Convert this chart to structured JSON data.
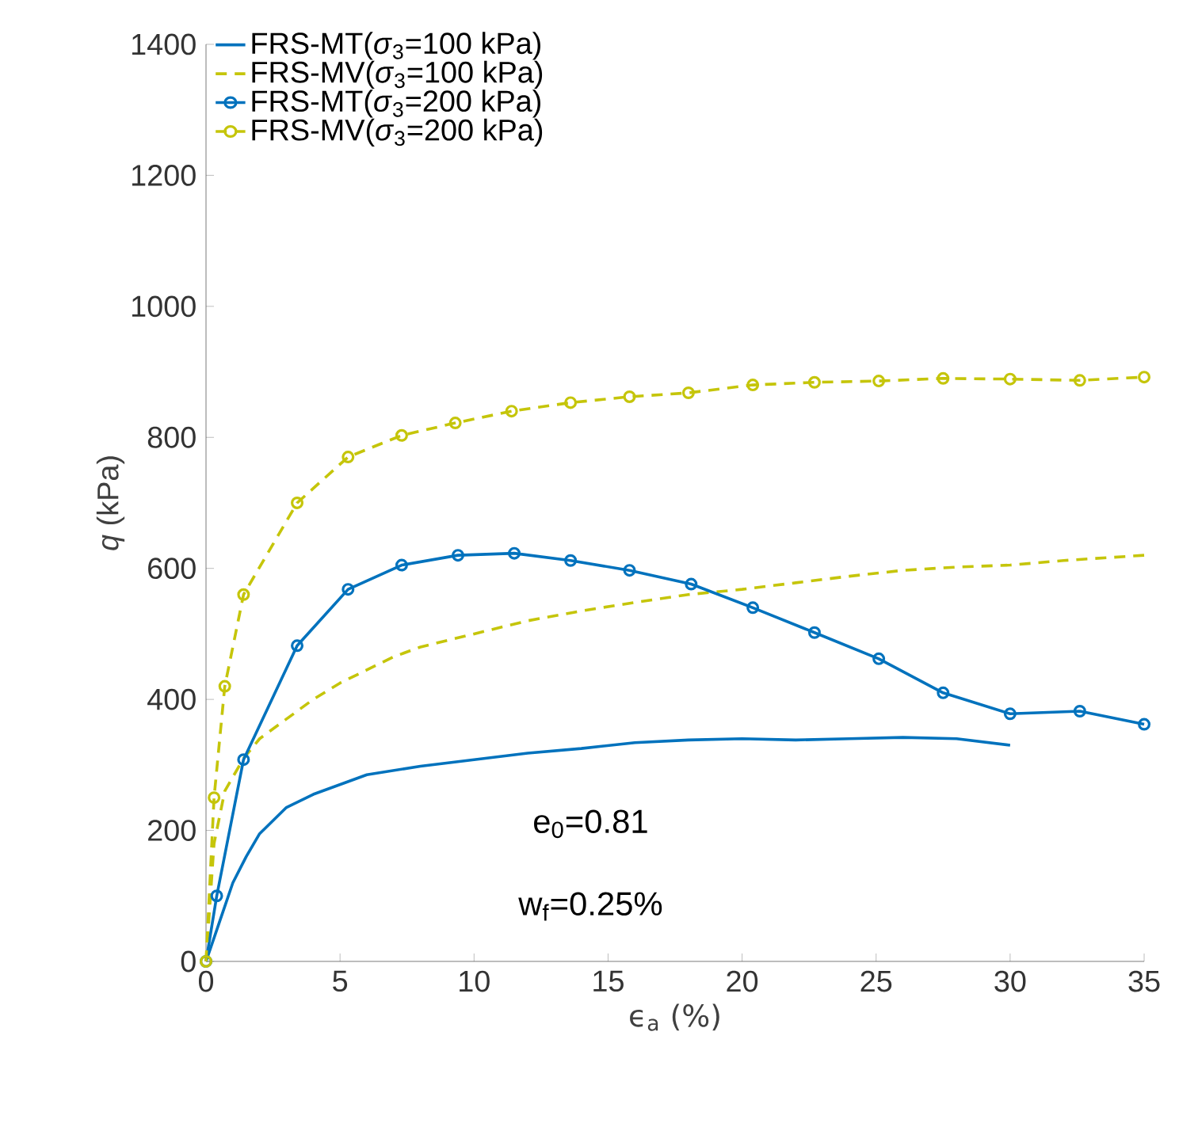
{
  "chart_data": {
    "type": "line",
    "xlabel": "ϵ$_{a}$ (%)",
    "ylabel": "*q* (kPa)",
    "xlim": [
      0,
      35
    ],
    "xticks": [
      0,
      5,
      10,
      15,
      20,
      25,
      30,
      35
    ],
    "ylim": [
      0,
      1400
    ],
    "yticks": [
      0,
      200,
      400,
      600,
      800,
      1000,
      1200,
      1400
    ],
    "legend": "top left",
    "annotations": [
      "e$_{0}$=0.81",
      "w$_{f}$=0.25%"
    ],
    "series": [
      {
        "name": "FRS-MT(*σ*$_{3}$=100 kPa)",
        "color": "#0072bd",
        "line_style": "solid",
        "marker": "none",
        "x": [
          0,
          0.5,
          1,
          1.5,
          2,
          3,
          4,
          5,
          6,
          8,
          10,
          12,
          14,
          16,
          18,
          20,
          22,
          24,
          26,
          28,
          30
        ],
        "values": [
          0,
          60,
          120,
          160,
          195,
          235,
          255,
          270,
          285,
          298,
          308,
          318,
          325,
          334,
          338,
          340,
          338,
          340,
          342,
          340,
          330
        ]
      },
      {
        "name": "FRS-MV(*σ*$_{3}$=100 kPa)",
        "color": "#c5c50a",
        "line_style": "dashed",
        "marker": "none",
        "x": [
          0,
          0.3,
          0.7,
          1.4,
          2,
          3,
          4,
          5,
          6,
          7,
          8,
          10,
          12,
          14,
          16,
          18,
          20,
          22,
          24,
          26,
          28,
          30,
          32,
          35
        ],
        "values": [
          0,
          180,
          260,
          310,
          340,
          370,
          400,
          425,
          445,
          465,
          480,
          500,
          520,
          535,
          548,
          560,
          568,
          578,
          588,
          597,
          602,
          605,
          612,
          620
        ]
      },
      {
        "name": "FRS-MT(*σ*$_{3}$=200 kPa)",
        "color": "#0072bd",
        "line_style": "solid",
        "marker": "circle",
        "x": [
          0,
          0.4,
          1.4,
          3.4,
          5.3,
          7.3,
          9.4,
          11.5,
          13.6,
          15.8,
          18.1,
          20.4,
          22.7,
          25.1,
          27.5,
          30,
          32.6,
          35
        ],
        "values": [
          0,
          100,
          308,
          482,
          568,
          605,
          620,
          623,
          612,
          597,
          576,
          540,
          502,
          462,
          410,
          378,
          382,
          362
        ]
      },
      {
        "name": "FRS-MV(*σ*$_{3}$=200 kPa)",
        "color": "#c5c50a",
        "line_style": "dashed",
        "marker": "circle",
        "x": [
          0,
          0.3,
          0.7,
          1.4,
          3.4,
          5.3,
          7.3,
          9.3,
          11.4,
          13.6,
          15.8,
          18,
          20.4,
          22.7,
          25.1,
          27.5,
          30,
          32.6,
          35
        ],
        "values": [
          0,
          250,
          420,
          560,
          700,
          770,
          803,
          822,
          840,
          853,
          862,
          868,
          880,
          884,
          886,
          890,
          889,
          887,
          892
        ]
      }
    ]
  }
}
